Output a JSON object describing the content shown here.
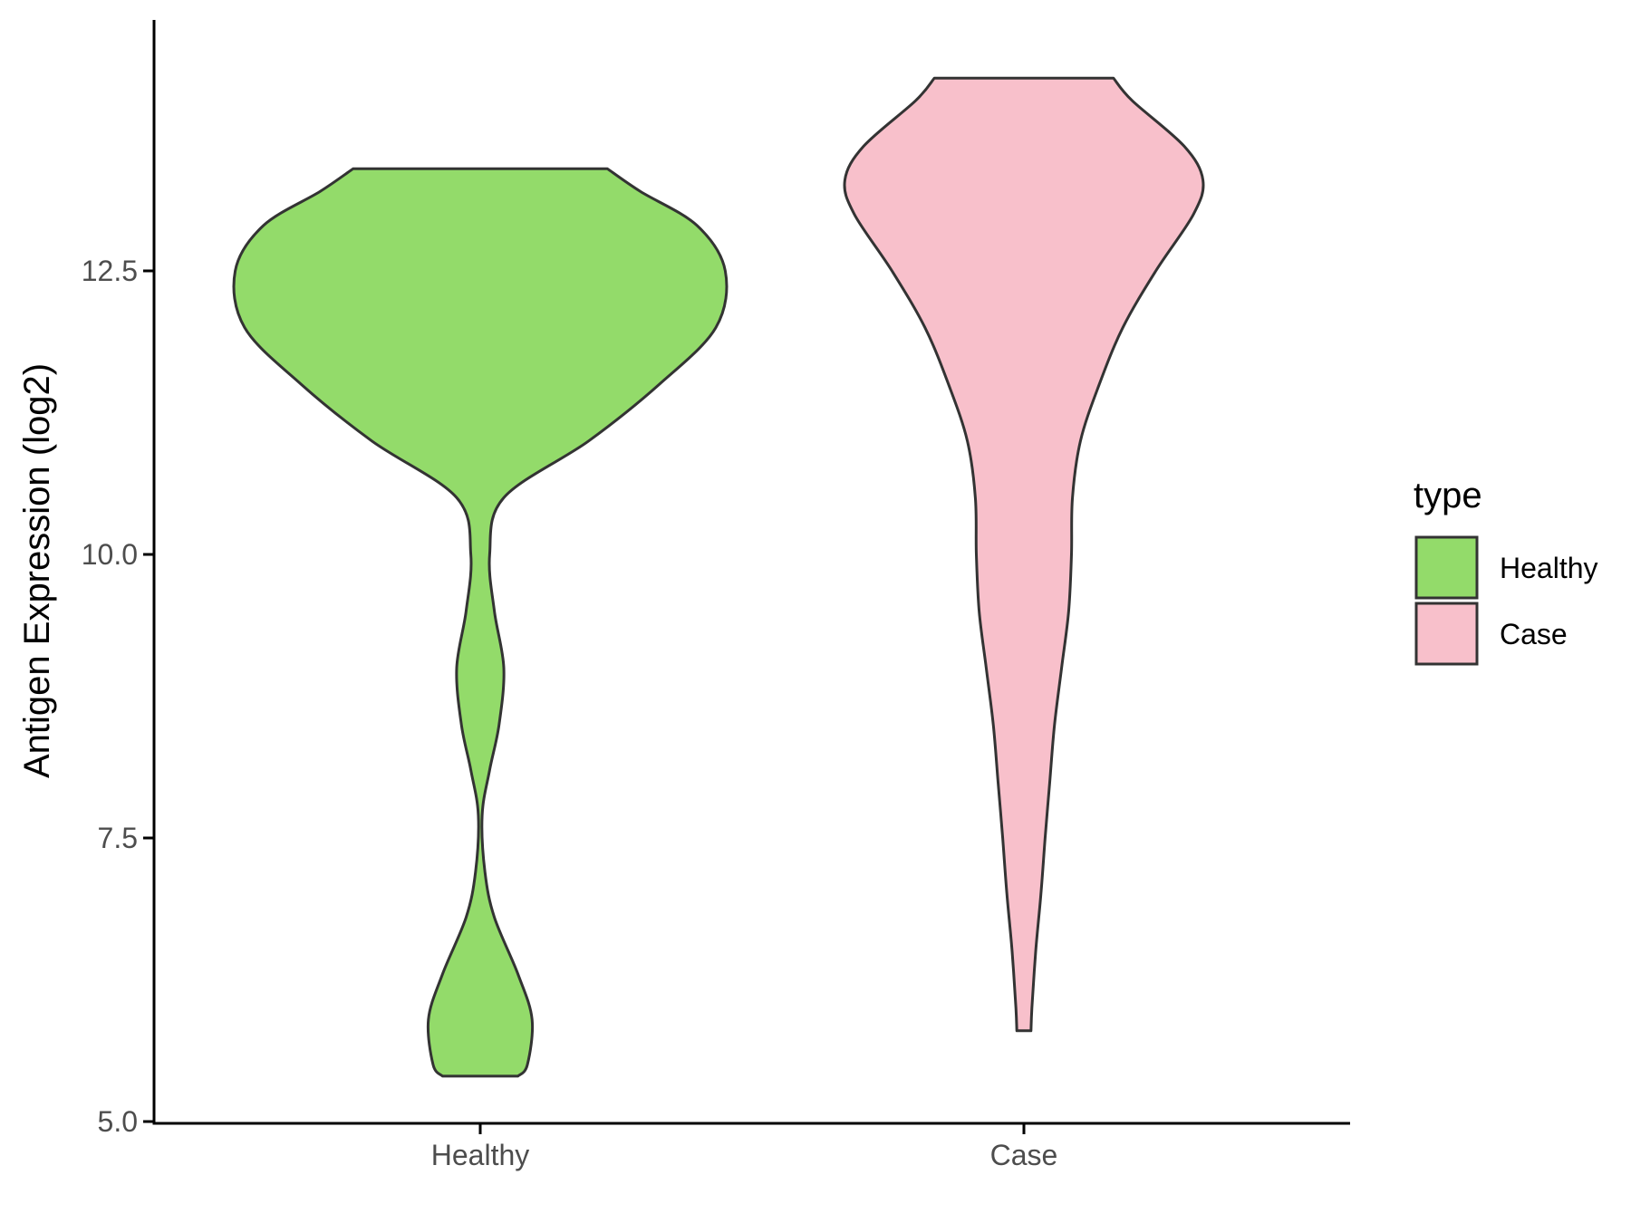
{
  "chart_data": {
    "type": "violin",
    "title": "",
    "xlabel": "",
    "ylabel": "Antigen Expression (log2)",
    "ylim": [
      5.0,
      14.7
    ],
    "yticks": [
      5.0,
      7.5,
      10.0,
      12.5
    ],
    "ytick_labels": [
      "5.0",
      "7.5",
      "10.0",
      "12.5"
    ],
    "categories": [
      "Healthy",
      "Case"
    ],
    "legend": {
      "title": "type",
      "position": "right",
      "entries": [
        "Healthy",
        "Case"
      ]
    },
    "series": [
      {
        "name": "Healthy",
        "color": "#93DB6A",
        "min": 5.4,
        "max": 13.4,
        "density_profile": [
          [
            5.4,
            0.08
          ],
          [
            5.5,
            0.1
          ],
          [
            5.9,
            0.11
          ],
          [
            6.3,
            0.08
          ],
          [
            6.8,
            0.03
          ],
          [
            7.2,
            0.01
          ],
          [
            7.7,
            0.004
          ],
          [
            8.1,
            0.02
          ],
          [
            8.5,
            0.04
          ],
          [
            9.0,
            0.05
          ],
          [
            9.5,
            0.03
          ],
          [
            10.0,
            0.02
          ],
          [
            10.5,
            0.05
          ],
          [
            11.0,
            0.23
          ],
          [
            11.5,
            0.38
          ],
          [
            12.0,
            0.5
          ],
          [
            12.5,
            0.52
          ],
          [
            12.9,
            0.46
          ],
          [
            13.2,
            0.34
          ],
          [
            13.4,
            0.27
          ]
        ]
      },
      {
        "name": "Case",
        "color": "#F8C0CB",
        "min": 5.8,
        "max": 14.2,
        "density_profile": [
          [
            5.8,
            0.015
          ],
          [
            6.0,
            0.017
          ],
          [
            6.5,
            0.025
          ],
          [
            7.0,
            0.036
          ],
          [
            7.5,
            0.045
          ],
          [
            8.0,
            0.055
          ],
          [
            8.5,
            0.065
          ],
          [
            9.0,
            0.08
          ],
          [
            9.5,
            0.095
          ],
          [
            10.0,
            0.101
          ],
          [
            10.5,
            0.103
          ],
          [
            11.0,
            0.12
          ],
          [
            11.5,
            0.16
          ],
          [
            12.0,
            0.21
          ],
          [
            12.5,
            0.28
          ],
          [
            13.0,
            0.36
          ],
          [
            13.3,
            0.38
          ],
          [
            13.6,
            0.34
          ],
          [
            14.0,
            0.23
          ],
          [
            14.2,
            0.19
          ]
        ]
      }
    ]
  }
}
